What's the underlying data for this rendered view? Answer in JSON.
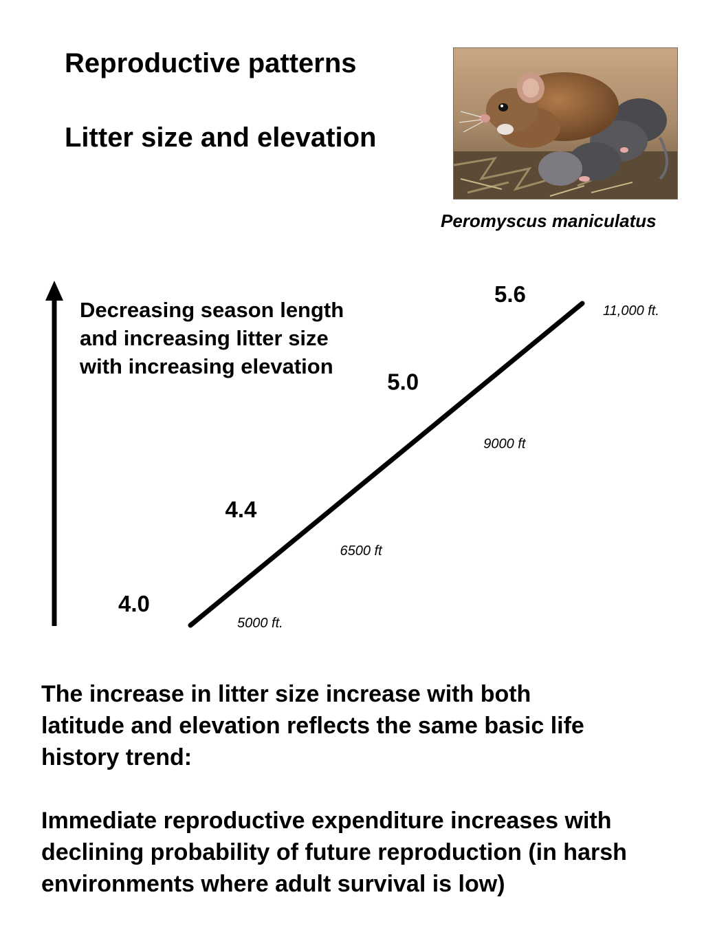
{
  "header": {
    "title": "Reproductive patterns",
    "subtitle": "Litter size and elevation"
  },
  "photo": {
    "icon": "mouse-photo-icon",
    "caption": "Peromyscus maniculatus"
  },
  "note": {
    "lines": [
      "Decreasing season length",
      "and increasing litter size",
      "with increasing elevation"
    ]
  },
  "chart_data": {
    "type": "line",
    "series": [
      {
        "values": [
          {
            "elevation": "5000 ft.",
            "litter_size": "4.0"
          },
          {
            "elevation": "6500 ft",
            "litter_size": "4.4"
          },
          {
            "elevation": "9000 ft",
            "litter_size": "5.0"
          },
          {
            "elevation": "11,000 ft.",
            "litter_size": "5.6"
          }
        ]
      }
    ],
    "x": [
      5000,
      6500,
      9000,
      11000
    ],
    "y": [
      4.0,
      4.4,
      5.0,
      5.6
    ],
    "elevation_labels": [
      "5000 ft.",
      "6500 ft",
      "9000 ft",
      "11,000 ft."
    ],
    "value_labels": [
      "4.0",
      "4.4",
      "5.0",
      "5.6"
    ],
    "xlabel": "",
    "ylabel": "",
    "title": "",
    "grid": false,
    "legend": "none",
    "line_color": "#000000"
  },
  "body": {
    "paragraph1": [
      "The increase in litter size increase with both",
      "latitude and elevation  reflects the same basic life",
      "history trend:"
    ],
    "paragraph2": [
      "Immediate reproductive expenditure increases with",
      "declining probability of future reproduction (in harsh",
      "environments where adult survival is low)"
    ]
  }
}
